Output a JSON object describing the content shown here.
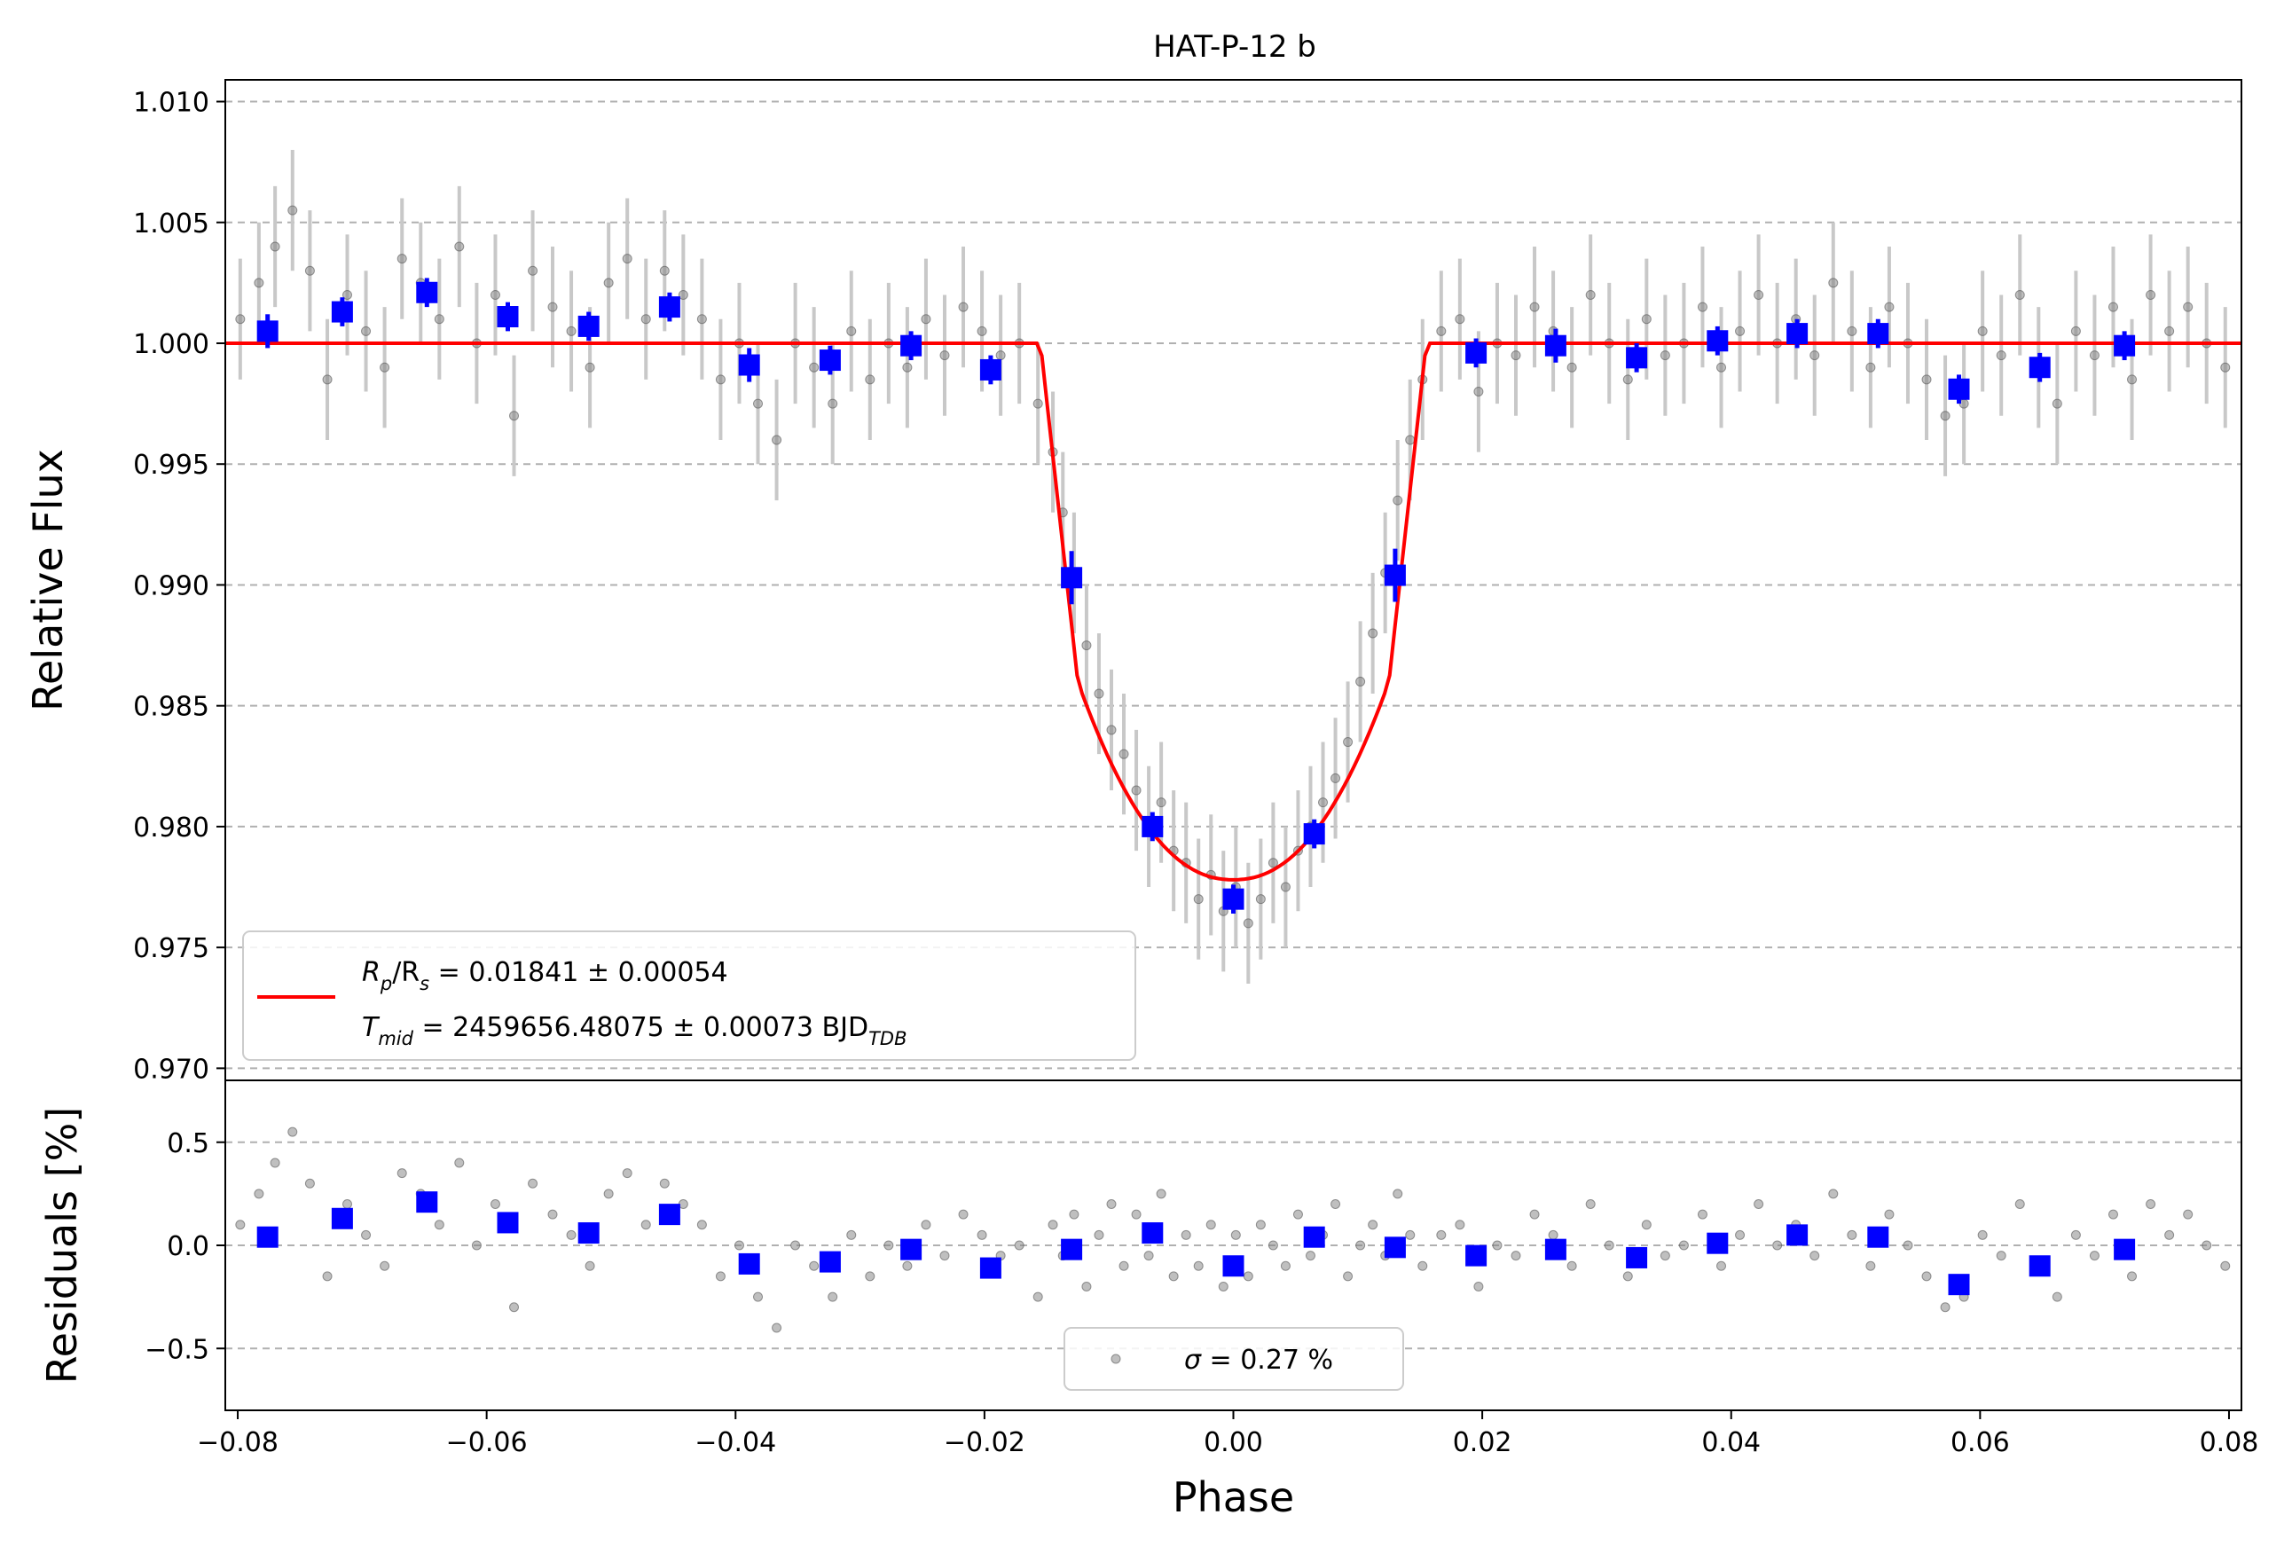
{
  "chart_data": [
    {
      "type": "scatter",
      "panel": "light-curve",
      "title": "HAT-P-12 b",
      "xlabel": "",
      "ylabel": "Relative Flux",
      "xlim": [
        -0.081,
        0.081
      ],
      "ylim": [
        0.9695,
        1.0109
      ],
      "yticks": [
        0.97,
        0.975,
        0.98,
        0.985,
        0.99,
        0.995,
        1.0,
        1.005,
        1.01
      ],
      "ytick_labels": [
        "0.970",
        "0.975",
        "0.980",
        "0.985",
        "0.990",
        "0.995",
        "1.000",
        "1.005",
        "1.010"
      ],
      "grid": true,
      "legend_placement": "lower-left",
      "model": {
        "depth": 0.01841,
        "depth_err": 0.00054,
        "t_mid": 2459656.48075,
        "t_mid_err": 0.00073,
        "contact_inner": 0.0125,
        "contact_outer": 0.0155,
        "min_flux": 0.9778,
        "color": "#ff0000"
      },
      "legend": {
        "line1": {
          "prefix": "R",
          "sub1": "p",
          "mid": "/R",
          "sub2": "s",
          "suffix": " = 0.01841 ± 0.00054"
        },
        "line2": {
          "prefix": "T",
          "sub1": "mid",
          "mid": " = 2459656.48075 ± 0.00073 BJD",
          "sub2": "TDB"
        }
      },
      "raw_points_note": "",
      "series": [
        {
          "role": "binned",
          "color": "#0000ff",
          "x": [
            -0.0776,
            -0.0716,
            -0.0648,
            -0.0583,
            -0.0518,
            -0.0453,
            -0.0389,
            -0.0324,
            -0.0259,
            -0.0195,
            -0.013,
            -0.0065,
            0.0,
            0.0065,
            0.013,
            0.0195,
            0.0259,
            0.0324,
            0.0389,
            0.0453,
            0.0518,
            0.0583,
            0.0648,
            0.0716
          ],
          "y": [
            1.0005,
            1.0013,
            1.0021,
            1.0011,
            1.0007,
            1.0015,
            0.9991,
            0.9993,
            0.9999,
            0.9989,
            0.9903,
            0.98,
            0.977,
            0.9797,
            0.9904,
            0.9996,
            0.9999,
            0.9994,
            1.0001,
            1.0004,
            1.0004,
            0.9981,
            0.999,
            0.9999
          ],
          "yerr": [
            0.0007,
            0.0006,
            0.0006,
            0.0006,
            0.0006,
            0.0006,
            0.0007,
            0.0006,
            0.0006,
            0.0006,
            0.0011,
            0.0006,
            0.0006,
            0.0006,
            0.0011,
            0.0006,
            0.0007,
            0.0006,
            0.0006,
            0.0006,
            0.0006,
            0.0006,
            0.0006,
            0.0006
          ]
        },
        {
          "role": "raw",
          "color": "#808080",
          "x": [
            -0.0798,
            -0.0783,
            -0.077,
            -0.0756,
            -0.0742,
            -0.0728,
            -0.0712,
            -0.0697,
            -0.0682,
            -0.0668,
            -0.0653,
            -0.0638,
            -0.0622,
            -0.0608,
            -0.0593,
            -0.0578,
            -0.0563,
            -0.0547,
            -0.0532,
            -0.0517,
            -0.0502,
            -0.0487,
            -0.0472,
            -0.0457,
            -0.0442,
            -0.0427,
            -0.0412,
            -0.0397,
            -0.0382,
            -0.0367,
            -0.0352,
            -0.0337,
            -0.0322,
            -0.0307,
            -0.0292,
            -0.0277,
            -0.0262,
            -0.0247,
            -0.0232,
            -0.0217,
            -0.0202,
            -0.0187,
            -0.0172,
            -0.0157,
            -0.0145,
            -0.0137,
            -0.0128,
            -0.0118,
            -0.0108,
            -0.0098,
            -0.0088,
            -0.0078,
            -0.0068,
            -0.0058,
            -0.0048,
            -0.0038,
            -0.0028,
            -0.0018,
            -0.0008,
            0.0002,
            0.0012,
            0.0022,
            0.0032,
            0.0042,
            0.0052,
            0.0062,
            0.0072,
            0.0082,
            0.0092,
            0.0102,
            0.0112,
            0.0122,
            0.0132,
            0.0142,
            0.0152,
            0.0167,
            0.0182,
            0.0197,
            0.0212,
            0.0227,
            0.0242,
            0.0257,
            0.0272,
            0.0287,
            0.0302,
            0.0317,
            0.0332,
            0.0347,
            0.0362,
            0.0377,
            0.0392,
            0.0407,
            0.0422,
            0.0437,
            0.0452,
            0.0467,
            0.0482,
            0.0497,
            0.0512,
            0.0527,
            0.0542,
            0.0557,
            0.0572,
            0.0587,
            0.0602,
            0.0617,
            0.0632,
            0.0647,
            0.0662,
            0.0677,
            0.0692,
            0.0707,
            0.0722,
            0.0737,
            0.0752,
            0.0767,
            0.0782,
            0.0797
          ],
          "y": [
            1.001,
            1.0025,
            1.004,
            1.0055,
            1.003,
            0.9985,
            1.002,
            1.0005,
            0.999,
            1.0035,
            1.0025,
            1.001,
            1.004,
            1.0,
            1.002,
            0.997,
            1.003,
            1.0015,
            1.0005,
            0.999,
            1.0025,
            1.0035,
            1.001,
            1.003,
            1.002,
            1.001,
            0.9985,
            1.0,
            0.9975,
            0.996,
            1.0,
            0.999,
            0.9975,
            1.0005,
            0.9985,
            1.0,
            0.999,
            1.001,
            0.9995,
            1.0015,
            1.0005,
            0.9995,
            1.0,
            0.9975,
            0.9955,
            0.993,
            0.9905,
            0.9875,
            0.9855,
            0.984,
            0.983,
            0.9815,
            0.98,
            0.981,
            0.979,
            0.9785,
            0.977,
            0.978,
            0.9765,
            0.9775,
            0.976,
            0.977,
            0.9785,
            0.9775,
            0.979,
            0.98,
            0.981,
            0.982,
            0.9835,
            0.986,
            0.988,
            0.9905,
            0.9935,
            0.996,
            0.9985,
            1.0005,
            1.001,
            0.998,
            1.0,
            0.9995,
            1.0015,
            1.0005,
            0.999,
            1.002,
            1.0,
            0.9985,
            1.001,
            0.9995,
            1.0,
            1.0015,
            0.999,
            1.0005,
            1.002,
            1.0,
            1.001,
            0.9995,
            1.0025,
            1.0005,
            0.999,
            1.0015,
            1.0,
            0.9985,
            0.997,
            0.9975,
            1.0005,
            0.9995,
            1.002,
            0.999,
            0.9975,
            1.0005,
            0.9995,
            1.0015,
            0.9985,
            1.002,
            1.0005,
            1.0015,
            1.0,
            0.999
          ],
          "yerr": 0.0025
        }
      ]
    },
    {
      "type": "scatter",
      "panel": "residuals",
      "xlabel": "Phase",
      "ylabel": "Residuals [%]",
      "xlim": [
        -0.081,
        0.081
      ],
      "ylim": [
        -0.8,
        0.8
      ],
      "xticks": [
        -0.08,
        -0.06,
        -0.04,
        -0.02,
        0.0,
        0.02,
        0.04,
        0.06,
        0.08
      ],
      "xtick_labels": [
        "−0.08",
        "−0.06",
        "−0.04",
        "−0.02",
        "0.00",
        "0.02",
        "0.04",
        "0.06",
        "0.08"
      ],
      "yticks": [
        -0.5,
        0.0,
        0.5
      ],
      "ytick_labels": [
        "−0.5",
        "0.0",
        "0.5"
      ],
      "grid": true,
      "legend_placement": "lower-center",
      "legend": {
        "sigma_symbol": "σ",
        "sigma_text": " = 0.27 %"
      },
      "series": [
        {
          "role": "binned",
          "color": "#0000ff",
          "x": [
            -0.0776,
            -0.0716,
            -0.0648,
            -0.0583,
            -0.0518,
            -0.0453,
            -0.0389,
            -0.0324,
            -0.0259,
            -0.0195,
            -0.013,
            -0.0065,
            0.0,
            0.0065,
            0.013,
            0.0195,
            0.0259,
            0.0324,
            0.0389,
            0.0453,
            0.0518,
            0.0583,
            0.0648,
            0.0716
          ],
          "y": [
            0.04,
            0.13,
            0.21,
            0.11,
            0.06,
            0.15,
            -0.09,
            -0.08,
            -0.02,
            -0.11,
            -0.02,
            0.06,
            -0.1,
            0.04,
            -0.01,
            -0.05,
            -0.02,
            -0.06,
            0.01,
            0.05,
            0.04,
            -0.19,
            -0.1,
            -0.02
          ]
        },
        {
          "role": "raw",
          "color": "#808080",
          "x": [
            -0.0798,
            -0.0783,
            -0.077,
            -0.0756,
            -0.0742,
            -0.0728,
            -0.0712,
            -0.0697,
            -0.0682,
            -0.0668,
            -0.0653,
            -0.0638,
            -0.0622,
            -0.0608,
            -0.0593,
            -0.0578,
            -0.0563,
            -0.0547,
            -0.0532,
            -0.0517,
            -0.0502,
            -0.0487,
            -0.0472,
            -0.0457,
            -0.0442,
            -0.0427,
            -0.0412,
            -0.0397,
            -0.0382,
            -0.0367,
            -0.0352,
            -0.0337,
            -0.0322,
            -0.0307,
            -0.0292,
            -0.0277,
            -0.0262,
            -0.0247,
            -0.0232,
            -0.0217,
            -0.0202,
            -0.0187,
            -0.0172,
            -0.0157,
            -0.0145,
            -0.0137,
            -0.0128,
            -0.0118,
            -0.0108,
            -0.0098,
            -0.0088,
            -0.0078,
            -0.0068,
            -0.0058,
            -0.0048,
            -0.0038,
            -0.0028,
            -0.0018,
            -0.0008,
            0.0002,
            0.0012,
            0.0022,
            0.0032,
            0.0042,
            0.0052,
            0.0062,
            0.0072,
            0.0082,
            0.0092,
            0.0102,
            0.0112,
            0.0122,
            0.0132,
            0.0142,
            0.0152,
            0.0167,
            0.0182,
            0.0197,
            0.0212,
            0.0227,
            0.0242,
            0.0257,
            0.0272,
            0.0287,
            0.0302,
            0.0317,
            0.0332,
            0.0347,
            0.0362,
            0.0377,
            0.0392,
            0.0407,
            0.0422,
            0.0437,
            0.0452,
            0.0467,
            0.0482,
            0.0497,
            0.0512,
            0.0527,
            0.0542,
            0.0557,
            0.0572,
            0.0587,
            0.0602,
            0.0617,
            0.0632,
            0.0647,
            0.0662,
            0.0677,
            0.0692,
            0.0707,
            0.0722,
            0.0737,
            0.0752,
            0.0767,
            0.0782,
            0.0797
          ],
          "y": [
            0.1,
            0.25,
            0.4,
            0.55,
            0.3,
            -0.15,
            0.2,
            0.05,
            -0.1,
            0.35,
            0.25,
            0.1,
            0.4,
            0.0,
            0.2,
            -0.3,
            0.3,
            0.15,
            0.05,
            -0.1,
            0.25,
            0.35,
            0.1,
            0.3,
            0.2,
            0.1,
            -0.15,
            0.0,
            -0.25,
            -0.4,
            0.0,
            -0.1,
            -0.25,
            0.05,
            -0.15,
            0.0,
            -0.1,
            0.1,
            -0.05,
            0.15,
            0.05,
            -0.05,
            0.0,
            -0.25,
            0.1,
            -0.05,
            0.15,
            -0.2,
            0.05,
            0.2,
            -0.1,
            0.15,
            -0.05,
            0.25,
            -0.15,
            0.05,
            -0.1,
            0.1,
            -0.2,
            0.05,
            -0.15,
            0.1,
            0.0,
            -0.1,
            0.15,
            -0.05,
            0.05,
            0.2,
            -0.15,
            0.0,
            0.1,
            -0.05,
            0.25,
            0.05,
            -0.1,
            0.05,
            0.1,
            -0.2,
            0.0,
            -0.05,
            0.15,
            0.05,
            -0.1,
            0.2,
            0.0,
            -0.15,
            0.1,
            -0.05,
            0.0,
            0.15,
            -0.1,
            0.05,
            0.2,
            0.0,
            0.1,
            -0.05,
            0.25,
            0.05,
            -0.1,
            0.15,
            0.0,
            -0.15,
            -0.3,
            -0.25,
            0.05,
            -0.05,
            0.2,
            -0.1,
            -0.25,
            0.05,
            -0.05,
            0.15,
            -0.15,
            0.2,
            0.05,
            0.15,
            0.0,
            -0.1
          ]
        }
      ]
    }
  ]
}
